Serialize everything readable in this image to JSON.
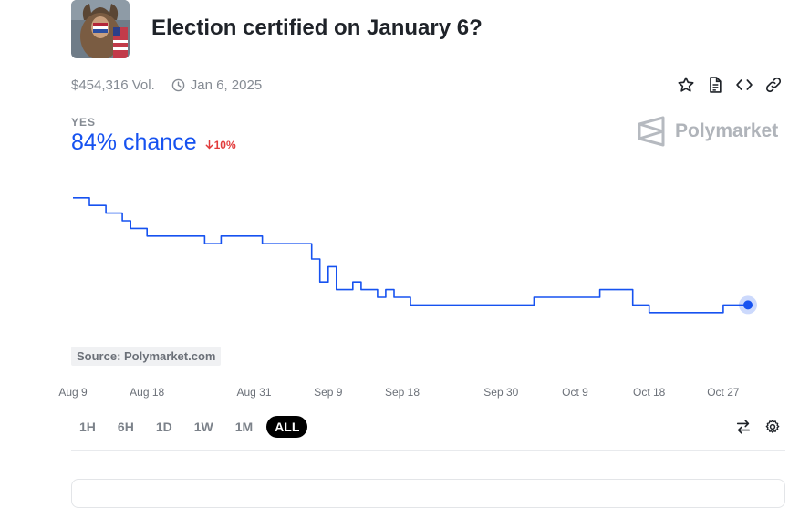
{
  "market": {
    "title": "Election certified on January 6?",
    "volume": "$454,316 Vol.",
    "end_date": "Jan 6, 2025",
    "outcome_label": "YES",
    "chance": "84% chance",
    "change": "10%",
    "change_direction": "down",
    "brand": "Polymarket",
    "source": "Source: Polymarket.com"
  },
  "colors": {
    "line": "#1652f0",
    "change": "#e23b3b",
    "active_range_bg": "#000000"
  },
  "icons": {
    "actions": [
      "star-icon",
      "document-icon",
      "embed-code-icon",
      "link-icon"
    ],
    "tools": [
      "swap-arrows-icon",
      "settings-gear-icon"
    ]
  },
  "ranges": {
    "items": [
      "1H",
      "6H",
      "1D",
      "1W",
      "1M",
      "ALL"
    ],
    "active": "ALL"
  },
  "chart_data": {
    "type": "line",
    "xlabel": "",
    "ylabel": "",
    "x_ticks": [
      "Aug 9",
      "Aug 18",
      "Aug 31",
      "Sep 9",
      "Sep 18",
      "Sep 30",
      "Oct 9",
      "Oct 18",
      "Oct 27"
    ],
    "ylim": [
      75,
      100
    ],
    "grid": false,
    "series": [
      {
        "x": [
          "Aug 9",
          "Aug 10",
          "Aug 11",
          "Aug 12",
          "Aug 13",
          "Aug 14",
          "Aug 15",
          "Aug 16",
          "Aug 17",
          "Aug 18",
          "Aug 19",
          "Aug 20",
          "Aug 21",
          "Aug 22",
          "Aug 23",
          "Aug 24",
          "Aug 25",
          "Aug 26",
          "Aug 27",
          "Aug 28",
          "Aug 29",
          "Aug 30",
          "Aug 31",
          "Sep 1",
          "Sep 2",
          "Sep 3",
          "Sep 4",
          "Sep 5",
          "Sep 6",
          "Sep 7",
          "Sep 8",
          "Sep 9",
          "Sep 10",
          "Sep 11",
          "Sep 12",
          "Sep 13",
          "Sep 14",
          "Sep 15",
          "Sep 16",
          "Sep 17",
          "Sep 18",
          "Sep 19",
          "Sep 20",
          "Sep 21",
          "Sep 22",
          "Sep 23",
          "Sep 24",
          "Sep 25",
          "Sep 26",
          "Sep 27",
          "Sep 28",
          "Sep 29",
          "Sep 30",
          "Oct 1",
          "Oct 2",
          "Oct 3",
          "Oct 4",
          "Oct 5",
          "Oct 6",
          "Oct 7",
          "Oct 8",
          "Oct 9",
          "Oct 10",
          "Oct 11",
          "Oct 12",
          "Oct 13",
          "Oct 14",
          "Oct 15",
          "Oct 16",
          "Oct 17",
          "Oct 18",
          "Oct 19",
          "Oct 20",
          "Oct 21",
          "Oct 22",
          "Oct 23",
          "Oct 24",
          "Oct 25",
          "Oct 26",
          "Oct 27",
          "Oct 28",
          "Oct 29",
          "Oct 30"
        ],
        "values": [
          98,
          98,
          97,
          97,
          96,
          96,
          95,
          94,
          94,
          93,
          93,
          93,
          93,
          93,
          93,
          93,
          92,
          92,
          93,
          93,
          93,
          93,
          93,
          92,
          92,
          92,
          92,
          92,
          92,
          90,
          87,
          89,
          86,
          86,
          87,
          86,
          86,
          85,
          86,
          85,
          85,
          84,
          84,
          84,
          84,
          84,
          84,
          84,
          84,
          84,
          84,
          84,
          84,
          84,
          84,
          84,
          85,
          85,
          85,
          85,
          85,
          85,
          85,
          85,
          86,
          86,
          86,
          86,
          84,
          84,
          83,
          83,
          83,
          83,
          83,
          83,
          83,
          83,
          83,
          84,
          84,
          84,
          84
        ]
      }
    ]
  }
}
